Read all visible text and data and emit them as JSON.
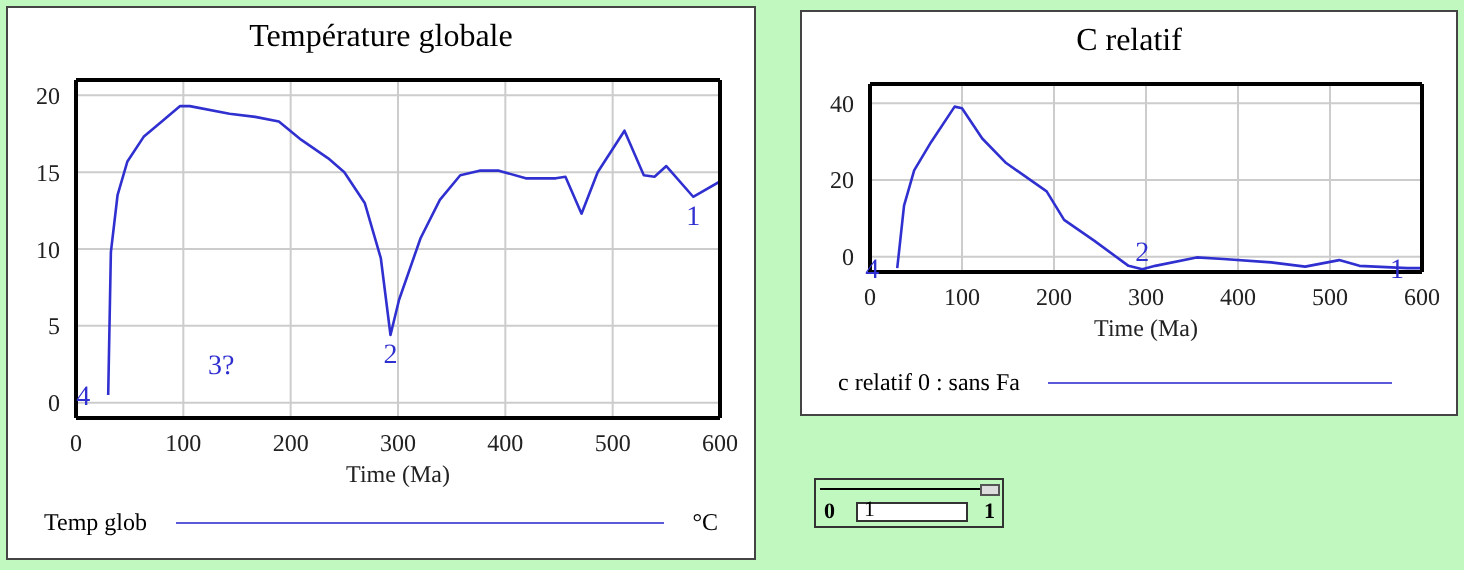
{
  "chart_data": [
    {
      "type": "line",
      "title": "Température globale",
      "xlabel": "Time (Ma)",
      "x": [
        30,
        32.5,
        38.7,
        47.9,
        63,
        81.6,
        97,
        106,
        143,
        167,
        189,
        210,
        235,
        250,
        269,
        284,
        293,
        301,
        321,
        339,
        358,
        376,
        394,
        419,
        447,
        456,
        471,
        486,
        511,
        529,
        539,
        550,
        575,
        600
      ],
      "series": [
        {
          "name": "Temp glob",
          "color": "#3030d0",
          "values": [
            0.5,
            9.8,
            13.5,
            15.7,
            17.3,
            18.4,
            19.3,
            19.3,
            18.8,
            18.6,
            18.3,
            17.1,
            15.9,
            15.0,
            13.0,
            9.4,
            4.4,
            6.7,
            10.7,
            13.2,
            14.8,
            15.1,
            15.1,
            14.6,
            14.6,
            14.7,
            12.3,
            15.0,
            17.7,
            14.8,
            14.7,
            15.4,
            13.4,
            14.4
          ]
        }
      ],
      "xlim": [
        0,
        600
      ],
      "xticks": [
        0,
        100,
        200,
        300,
        400,
        500,
        600
      ],
      "ylim": [
        -1,
        21
      ],
      "yticks": [
        0,
        5,
        10,
        15,
        20
      ],
      "grid": true,
      "legend": "bottom",
      "annotations": [
        {
          "text": "4",
          "x": 30,
          "y": 0.5
        },
        "3?",
        {
          "text": "2",
          "x": 293,
          "y": 4.4
        },
        {
          "text": "1",
          "x": 575,
          "y": 13.4
        },
        "°C"
      ]
    },
    {
      "type": "line",
      "title": "C relatif",
      "xlabel": "Time (Ma)",
      "x": [
        29.6,
        37,
        48,
        66.5,
        92,
        100,
        122,
        148,
        192,
        211,
        244,
        281,
        296,
        310,
        355,
        384,
        436,
        473,
        510,
        532,
        584,
        600
      ],
      "series": [
        {
          "name": "c relatif 0 : sans Fa",
          "color": "#3030d0",
          "values": [
            -3,
            13.3,
            22.5,
            29.9,
            39.1,
            38.7,
            30.8,
            24.4,
            17,
            9.6,
            4.1,
            -2.4,
            -3.3,
            -2.4,
            -0.2,
            -0.6,
            -1.5,
            -2.6,
            -0.9,
            -2.4,
            -3,
            -3
          ]
        }
      ],
      "xlim": [
        0,
        600
      ],
      "xticks": [
        0,
        100,
        200,
        300,
        400,
        500,
        600
      ],
      "ylim": [
        -4,
        45
      ],
      "yticks": [
        0,
        20,
        40
      ],
      "grid": true,
      "legend": "bottom",
      "annotations": [
        {
          "text": "4",
          "x": 29.6,
          "y": -3
        },
        {
          "text": "2",
          "x": 296,
          "y": -3.3
        },
        {
          "text": "1",
          "x": 600,
          "y": -3
        }
      ]
    },
    {
      "type": "other",
      "annotations": [
        "0",
        "1",
        "1"
      ]
    }
  ]
}
